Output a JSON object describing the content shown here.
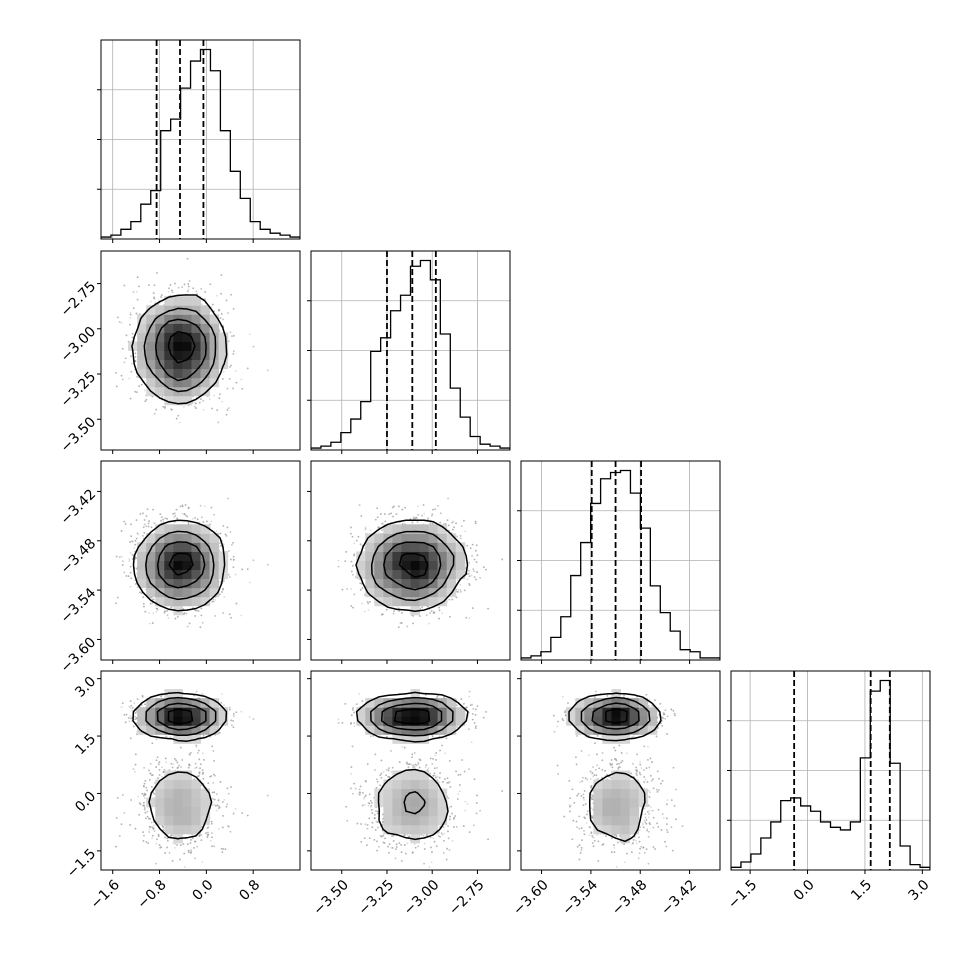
{
  "chart_data": {
    "type": "corner",
    "grid": true,
    "dims": [
      {
        "tick_labels": [
          "−1.6",
          "−0.8",
          "0.0",
          "0.8"
        ],
        "ticks": [
          -1.6,
          -0.8,
          0.0,
          0.8
        ],
        "range": [
          -1.8,
          1.6
        ],
        "quantiles": [
          -0.85,
          -0.45,
          -0.05
        ],
        "hist": [
          1,
          2,
          5,
          9,
          18,
          25,
          56,
          62,
          78,
          92,
          98,
          87,
          56,
          35,
          21,
          9,
          5,
          3,
          2,
          1
        ]
      },
      {
        "tick_labels": [
          "−3.50",
          "−3.25",
          "−3.00",
          "−2.75"
        ],
        "ticks": [
          -3.5,
          -3.25,
          -3.0,
          -2.75
        ],
        "range": [
          -3.67,
          -2.57
        ],
        "quantiles": [
          -3.25,
          -3.11,
          -2.98
        ],
        "hist": [
          1,
          2,
          4,
          9,
          16,
          25,
          51,
          58,
          72,
          80,
          95,
          98,
          88,
          60,
          32,
          17,
          7,
          3,
          2,
          1
        ]
      },
      {
        "tick_labels": [
          "−3.60",
          "−3.54",
          "−3.48",
          "−3.42"
        ],
        "ticks": [
          -3.6,
          -3.54,
          -3.48,
          -3.42
        ],
        "range": [
          -3.625,
          -3.383
        ],
        "quantiles": [
          -3.539,
          -3.51,
          -3.479
        ],
        "hist": [
          1,
          2,
          4,
          11,
          21,
          41,
          57,
          76,
          88,
          91,
          92,
          81,
          64,
          36,
          23,
          14,
          5,
          4,
          1,
          1
        ]
      },
      {
        "tick_labels": [
          "−1.5",
          "0.0",
          "1.5",
          "3.0"
        ],
        "ticks": [
          -1.5,
          0.0,
          1.5,
          3.0
        ],
        "range": [
          -2.0,
          3.2
        ],
        "quantiles": [
          -0.35,
          1.65,
          2.15
        ],
        "hist": [
          1,
          3,
          6,
          12,
          18,
          26,
          27,
          24,
          22,
          18,
          16,
          15,
          18,
          42,
          67,
          71,
          40,
          9,
          2,
          1
        ]
      }
    ],
    "row_tick_labels": [
      [],
      [
        "−2.75",
        "−3.00",
        "−3.25",
        "−3.50"
      ],
      [
        "−3.42",
        "−3.48",
        "−3.54",
        "−3.60"
      ],
      [
        "3.0",
        "1.5",
        "0.0",
        "−1.5"
      ]
    ],
    "modes": [
      {
        "center": [
          -0.45,
          -3.11,
          -3.51
        ],
        "spread": [
          0.35,
          0.14,
          0.025
        ]
      }
    ],
    "dim3_modes": [
      {
        "mean": 2.0,
        "sd": 0.22,
        "weight": 0.6
      },
      {
        "mean": -0.35,
        "sd": 0.65,
        "weight": 0.4
      }
    ]
  }
}
